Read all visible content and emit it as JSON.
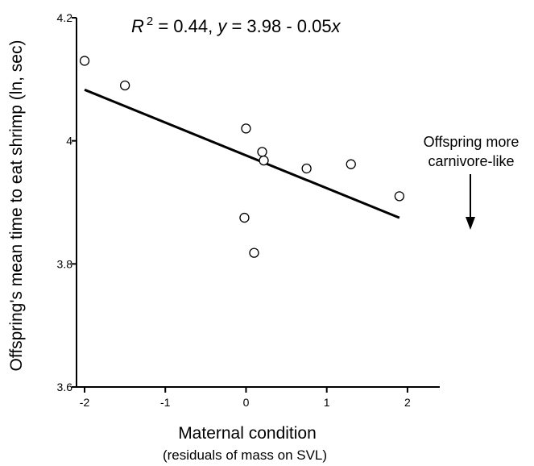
{
  "chart_data": {
    "type": "scatter",
    "title": "",
    "xlabel": "Maternal condition",
    "xlabel_sub": "(residuals of mass on SVL)",
    "ylabel": "Offspring's mean time to eat shrimp (ln, sec)",
    "xlim": [
      -2.1,
      2.4
    ],
    "ylim": [
      3.6,
      4.2
    ],
    "x_ticks": [
      -2,
      -1,
      0,
      1,
      2
    ],
    "x_tick_labels": [
      "-2",
      "-1",
      "0",
      "1",
      "2"
    ],
    "y_ticks": [
      3.6,
      3.8,
      4.0,
      4.2
    ],
    "y_tick_labels": [
      "3.6",
      "3.8",
      "4",
      "4.2"
    ],
    "grid": false,
    "points": [
      {
        "x": -2.0,
        "y": 4.13
      },
      {
        "x": -1.5,
        "y": 4.09
      },
      {
        "x": 0.0,
        "y": 4.02
      },
      {
        "x": 0.2,
        "y": 3.982
      },
      {
        "x": 0.22,
        "y": 3.968
      },
      {
        "x": 0.75,
        "y": 3.955
      },
      {
        "x": 1.3,
        "y": 3.962
      },
      {
        "x": 1.9,
        "y": 3.91
      },
      {
        "x": -0.02,
        "y": 3.875
      },
      {
        "x": 0.1,
        "y": 3.818
      }
    ],
    "regression": {
      "x_start": -2.0,
      "x_end": 1.9,
      "y_start": 4.083,
      "y_end": 3.875
    },
    "equation": {
      "r_symbol": "R",
      "r_exponent": "2",
      "text": " = 0.44, ",
      "y_var": "y",
      "rhs": " = 3.98 - 0.05",
      "x_var": "x"
    },
    "annotation": {
      "lines": [
        "Offspring more",
        "carnivore-like"
      ],
      "arrow": "down"
    }
  }
}
